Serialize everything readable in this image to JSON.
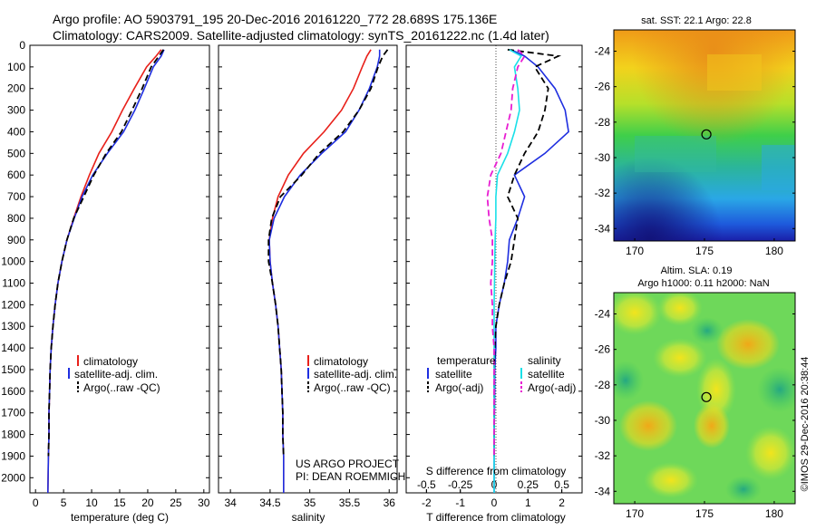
{
  "header": {
    "line1": "Argo profile: AO 5903791_195 20-Dec-2016 20161220_772 28.689S 175.136E",
    "line2": "Climatology: CARS2009. Satellite-adjusted climatology: synTS_20161222.nc (1.4d later)"
  },
  "colors": {
    "climatology": "#e8201a",
    "satellite": "#1e2ee0",
    "argo": "#000000",
    "sat_salinity": "#19e0e8",
    "argo_salinity": "#e81ed2"
  },
  "depth_axis": {
    "ticks": [
      "0",
      "100",
      "200",
      "300",
      "400",
      "500",
      "600",
      "700",
      "800",
      "900",
      "1000",
      "1100",
      "1200",
      "1300",
      "1400",
      "1500",
      "1600",
      "1700",
      "1800",
      "1900",
      "2000"
    ]
  },
  "temp_panel": {
    "xlabel": "temperature (deg C)",
    "xticks": [
      "0",
      "5",
      "10",
      "15",
      "20",
      "25",
      "30"
    ],
    "legend": [
      "climatology",
      "satellite-adj. clim.",
      "Argo(..raw -QC)"
    ]
  },
  "sal_panel": {
    "xlabel": "salinity",
    "xticks": [
      "34",
      "34.5",
      "35",
      "35.5",
      "36"
    ],
    "legend": [
      "climatology",
      "satellite-adj. clim.",
      "Argo(..raw -QC)"
    ],
    "project": "US ARGO PROJECT",
    "pi": "PI: DEAN ROEMMICH"
  },
  "diff_panel": {
    "s_label": "S difference from climatology",
    "s_ticks": [
      "-0.5",
      "-0.25",
      "0",
      "0.25",
      "0.5"
    ],
    "t_label": "T difference from climatology",
    "t_ticks": [
      "-2",
      "-1",
      "0",
      "1",
      "2"
    ],
    "legend_t_title": "temperature",
    "legend_s_title": "salinity",
    "legend_t": [
      "satellite",
      "Argo(-adj)"
    ],
    "legend_s": [
      "satellite",
      "Argo(-adj)"
    ]
  },
  "map_sst": {
    "title": "sat. SST: 22.1  Argo: 22.8",
    "lat_ticks": [
      "-24",
      "-26",
      "-28",
      "-30",
      "-32",
      "-34"
    ],
    "lon_ticks": [
      "170",
      "175",
      "180"
    ]
  },
  "map_sla": {
    "title1": "Altim. SLA: 0.19",
    "title2": "Argo h1000: 0.11 h2000: NaN",
    "lat_ticks": [
      "-24",
      "-26",
      "-28",
      "-30",
      "-32",
      "-34"
    ],
    "lon_ticks": [
      "170",
      "175",
      "180"
    ],
    "credit": "©IMOS 29-Dec-2016 20:38:44"
  },
  "chart_data": [
    {
      "type": "line",
      "xlabel": "temperature (deg C)",
      "ylabel": "depth",
      "ylim": [
        2070,
        0
      ],
      "xlim": [
        -1,
        31
      ],
      "series": [
        {
          "name": "climatology",
          "color": "red",
          "x": [
            22.4,
            21.5,
            19.8,
            17.6,
            15.5,
            13.6,
            11.3,
            9.6,
            8.1,
            6.8,
            5.6,
            4.7,
            4.0,
            3.5,
            3.1,
            2.8,
            2.6,
            2.5,
            2.4,
            2.4,
            2.3,
            2.2
          ],
          "y": [
            20,
            50,
            100,
            200,
            300,
            400,
            500,
            600,
            700,
            800,
            900,
            1000,
            1100,
            1200,
            1300,
            1400,
            1500,
            1600,
            1700,
            1800,
            1900,
            2070
          ]
        },
        {
          "name": "satellite-adj. clim.",
          "color": "blue",
          "x": [
            22.9,
            22.4,
            21.0,
            19.4,
            17.7,
            15.7,
            12.8,
            10.2,
            8.3,
            6.9,
            5.6,
            4.7,
            4.0,
            3.5,
            3.1,
            2.8,
            2.6,
            2.5,
            2.4,
            2.4,
            2.3,
            2.2
          ],
          "y": [
            20,
            50,
            100,
            200,
            300,
            400,
            500,
            600,
            700,
            800,
            900,
            1000,
            1100,
            1200,
            1300,
            1400,
            1500,
            1600,
            1700,
            1800,
            1900,
            2070
          ]
        },
        {
          "name": "Argo(..raw -QC)",
          "color": "black",
          "x": [
            22.8,
            22.0,
            20.6,
            19.0,
            17.2,
            15.3,
            12.6,
            10.4,
            8.6,
            6.8,
            5.6,
            4.7,
            4.0,
            3.5,
            3.1,
            2.8,
            2.6,
            2.5,
            2.4,
            2.4,
            2.3
          ],
          "y": [
            20,
            50,
            100,
            200,
            300,
            400,
            500,
            600,
            700,
            800,
            900,
            1000,
            1100,
            1200,
            1300,
            1400,
            1500,
            1600,
            1700,
            1800,
            1900
          ]
        }
      ]
    },
    {
      "type": "line",
      "xlabel": "salinity",
      "ylabel": "depth",
      "ylim": [
        2070,
        0
      ],
      "xlim": [
        33.85,
        36.1
      ],
      "series": [
        {
          "name": "climatology",
          "color": "red",
          "x": [
            35.77,
            35.72,
            35.66,
            35.55,
            35.4,
            35.18,
            34.92,
            34.73,
            34.6,
            34.53,
            34.49,
            34.5,
            34.53,
            34.57,
            34.6,
            34.62,
            34.64,
            34.65,
            34.66,
            34.66,
            34.67,
            34.67
          ],
          "y": [
            20,
            50,
            100,
            200,
            300,
            400,
            500,
            600,
            700,
            800,
            900,
            1000,
            1100,
            1200,
            1300,
            1400,
            1500,
            1600,
            1700,
            1800,
            1900,
            2070
          ]
        },
        {
          "name": "satellite-adj. clim.",
          "color": "blue",
          "x": [
            35.88,
            35.88,
            35.85,
            35.75,
            35.62,
            35.45,
            35.15,
            34.88,
            34.68,
            34.55,
            34.49,
            34.5,
            34.53,
            34.57,
            34.6,
            34.62,
            34.64,
            34.65,
            34.66,
            34.66,
            34.67,
            34.67
          ],
          "y": [
            20,
            50,
            100,
            200,
            300,
            400,
            500,
            600,
            700,
            800,
            900,
            1000,
            1100,
            1200,
            1300,
            1400,
            1500,
            1600,
            1700,
            1800,
            1900,
            2070
          ]
        },
        {
          "name": "Argo(..raw -QC)",
          "color": "black",
          "x": [
            35.98,
            35.92,
            35.86,
            35.77,
            35.62,
            35.42,
            35.12,
            34.9,
            34.63,
            34.52,
            34.48,
            34.48,
            34.53,
            34.57,
            34.6,
            34.62,
            34.64,
            34.65,
            34.66,
            34.66,
            34.67
          ],
          "y": [
            20,
            50,
            100,
            200,
            300,
            400,
            500,
            600,
            700,
            800,
            900,
            1000,
            1100,
            1200,
            1300,
            1400,
            1500,
            1600,
            1700,
            1800,
            1900
          ]
        }
      ]
    },
    {
      "type": "line",
      "xlabel": "T difference from climatology",
      "ylabel": "depth",
      "ylim": [
        2070,
        0
      ],
      "xlim": [
        -2.6,
        2.6
      ],
      "series": [
        {
          "name": "temperature satellite",
          "color": "blue",
          "x": [
            0.5,
            0.9,
            1.3,
            1.8,
            2.1,
            2.2,
            1.5,
            0.6,
            0.9,
            0.7,
            0.45,
            0.4,
            0.3,
            0.15,
            0.05,
            0.05,
            0.02,
            0.02,
            0.01,
            0.0,
            0.0,
            0.0
          ],
          "y": [
            20,
            50,
            100,
            200,
            300,
            400,
            500,
            600,
            700,
            800,
            900,
            1000,
            1100,
            1200,
            1300,
            1400,
            1500,
            1600,
            1700,
            1800,
            1900,
            2070
          ]
        },
        {
          "name": "temperature Argo(-adj)",
          "color": "black",
          "x": [
            0.4,
            1.9,
            1.2,
            1.6,
            1.5,
            1.3,
            0.9,
            0.6,
            0.4,
            0.7,
            0.6,
            0.5,
            0.3,
            0.15,
            0.05,
            0.02,
            0.0,
            0.0,
            0.0,
            0.0,
            0.0
          ],
          "y": [
            20,
            50,
            100,
            200,
            300,
            400,
            500,
            600,
            700,
            800,
            900,
            1000,
            1100,
            1200,
            1300,
            1400,
            1500,
            1600,
            1700,
            1800,
            1900
          ]
        },
        {
          "name": "salinity satellite",
          "color": "cyan",
          "x": [
            0.45,
            0.8,
            0.6,
            0.7,
            0.75,
            0.6,
            0.4,
            0.1,
            0.05,
            0.05,
            0.03,
            0.02,
            0.01,
            0.0,
            0.0,
            0.0,
            0.0,
            0.0,
            0.0,
            0.0,
            0.0,
            0.0
          ],
          "y": [
            20,
            50,
            100,
            200,
            300,
            400,
            500,
            600,
            700,
            800,
            900,
            1000,
            1100,
            1200,
            1300,
            1400,
            1500,
            1600,
            1700,
            1800,
            1900,
            2070
          ]
        },
        {
          "name": "salinity Argo(-adj)",
          "color": "magenta",
          "x": [
            0.7,
            0.9,
            0.7,
            0.55,
            0.5,
            0.35,
            0.2,
            -0.1,
            -0.2,
            -0.15,
            -0.05,
            -0.05,
            -0.1,
            -0.05,
            -0.05,
            0.0,
            0.0,
            0.0,
            0.0,
            0.0,
            0.0
          ],
          "y": [
            20,
            50,
            100,
            200,
            300,
            400,
            500,
            600,
            700,
            800,
            900,
            1000,
            1100,
            1200,
            1300,
            1400,
            1500,
            1600,
            1700,
            1800,
            1900
          ]
        }
      ]
    },
    {
      "type": "heatmap",
      "title": "sat. SST: 22.1  Argo: 22.8",
      "lon_range": [
        168.5,
        181.5
      ],
      "lat_range": [
        -34.7,
        -22.8
      ],
      "marker": {
        "lon": 175.136,
        "lat": -28.689
      }
    },
    {
      "type": "heatmap",
      "title": "Altim. SLA: 0.19",
      "lon_range": [
        168.5,
        181.5
      ],
      "lat_range": [
        -34.7,
        -22.8
      ],
      "marker": {
        "lon": 175.136,
        "lat": -28.689
      }
    }
  ]
}
